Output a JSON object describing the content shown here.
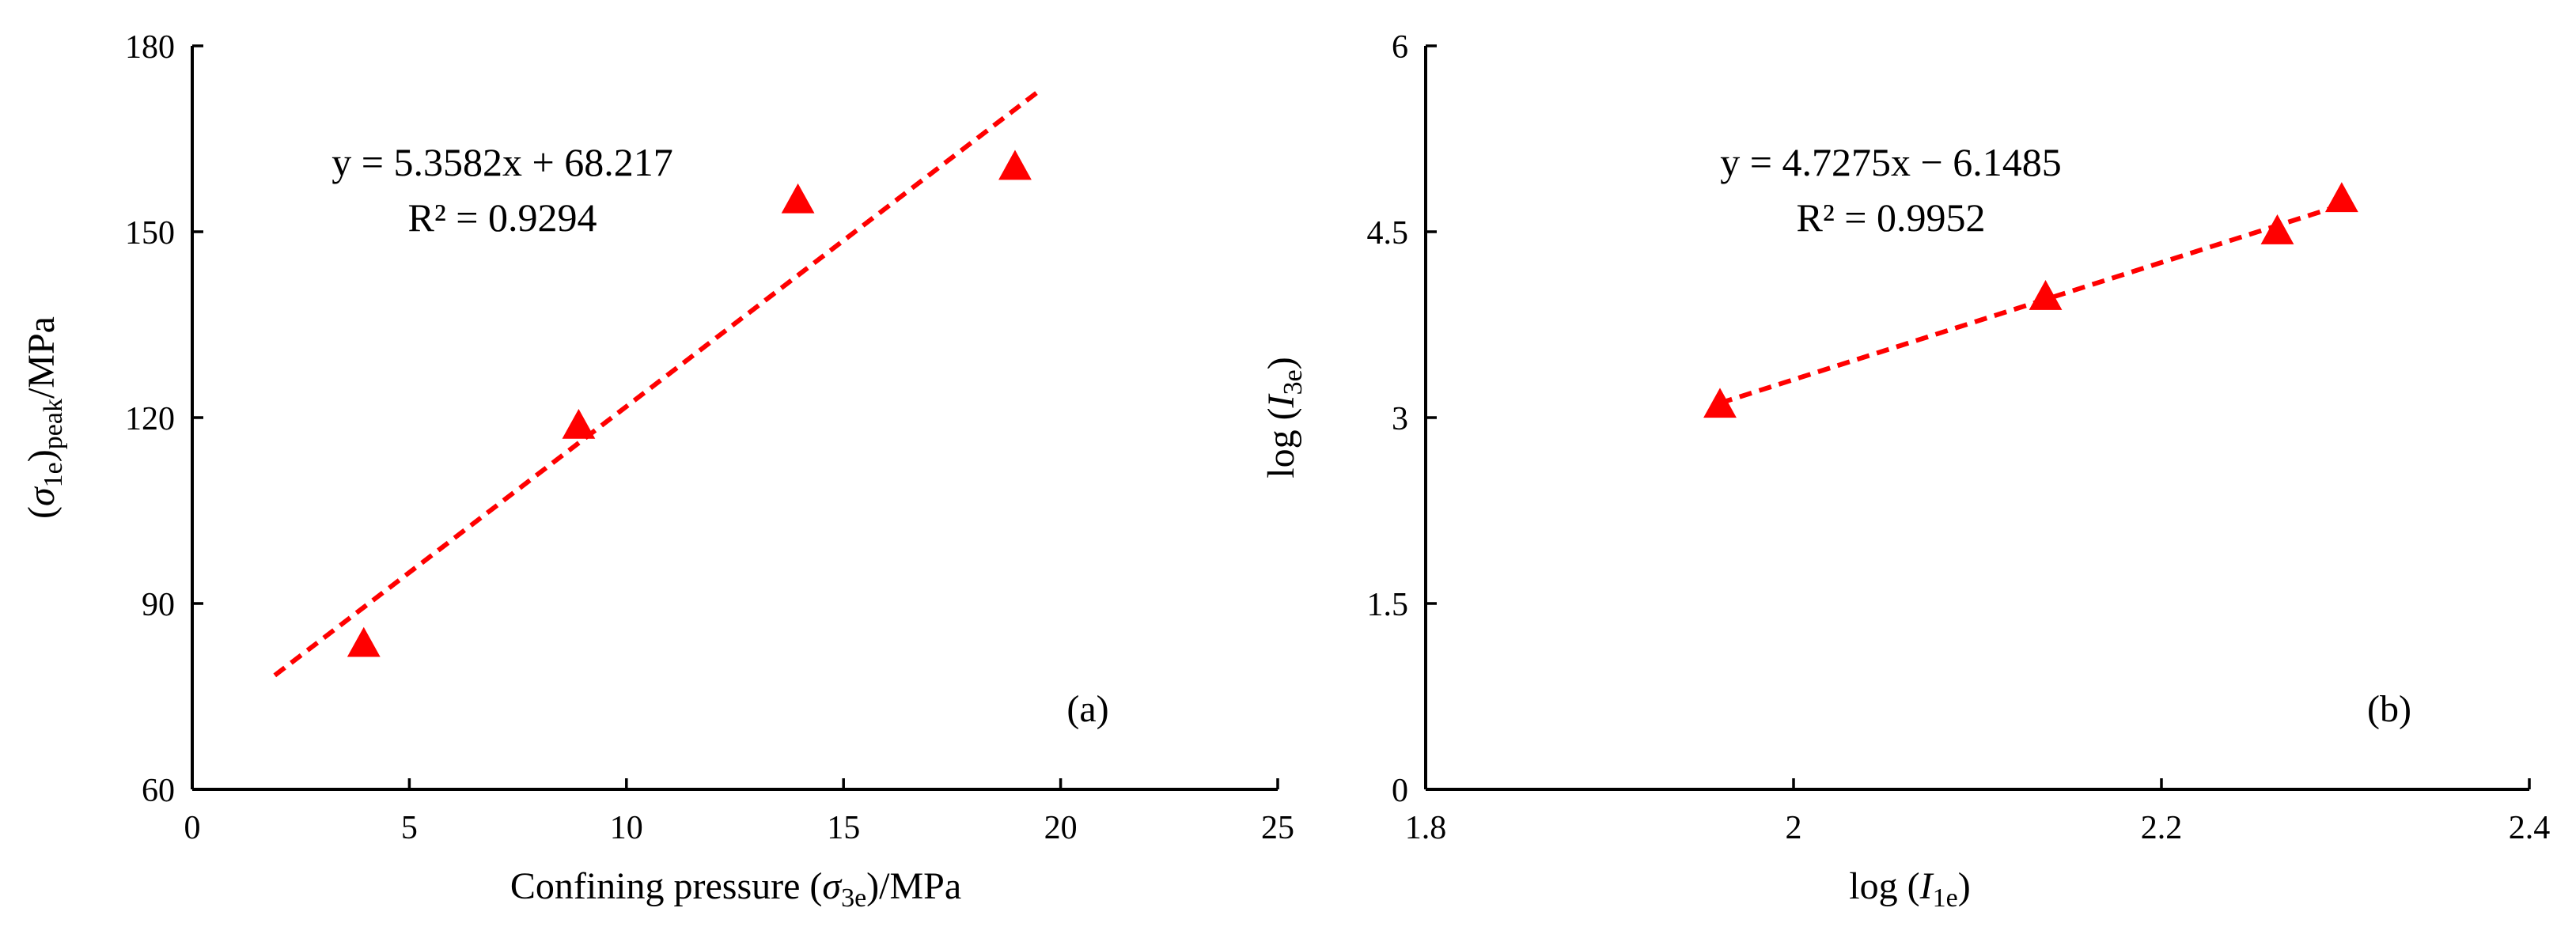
{
  "colors": {
    "marker": "#ff0000",
    "trendline": "#ff0000",
    "axis": "#000000"
  },
  "chart_data": [
    {
      "type": "scatter",
      "panel_label": "(a)",
      "xlabel_parts": [
        "Confining pressure (",
        "σ",
        "3e",
        ")/MPa"
      ],
      "ylabel_parts": [
        "(",
        "σ",
        "1e",
        ")",
        "peak",
        "/MPa"
      ],
      "xlim": [
        0,
        25
      ],
      "ylim": [
        60,
        180
      ],
      "xticks": [
        0,
        5,
        10,
        15,
        20,
        25
      ],
      "yticks": [
        60,
        90,
        120,
        150,
        180
      ],
      "x_tick_labels": [
        "0",
        "5",
        "10",
        "15",
        "20",
        "25"
      ],
      "y_tick_labels": [
        "60",
        "90",
        "120",
        "150",
        "180"
      ],
      "marker": "triangle",
      "series": [
        {
          "x": [
            3.95,
            8.9,
            13.95,
            18.95
          ],
          "y": [
            83.4,
            118.6,
            155.0,
            160.4
          ]
        }
      ],
      "trendline": {
        "slope": 5.3582,
        "intercept": 68.217,
        "x_range": [
          1.9,
          19.5
        ]
      },
      "annotations": {
        "equation": "y = 5.3582x + 68.217",
        "r2": "R² = 0.9294"
      },
      "grid": false
    },
    {
      "type": "scatter",
      "panel_label": "(b)",
      "xlabel_parts": [
        "log (",
        "I",
        "1e",
        ")"
      ],
      "ylabel_parts": [
        "log (",
        "I",
        "3e",
        ")"
      ],
      "xlim": [
        1.8,
        2.4
      ],
      "ylim": [
        0,
        6
      ],
      "xticks": [
        1.8,
        2.0,
        2.2,
        2.4
      ],
      "yticks": [
        0,
        1.5,
        3,
        4.5,
        6
      ],
      "x_tick_labels": [
        "1.8",
        "2",
        "2.2",
        "2.4"
      ],
      "y_tick_labels": [
        "0",
        "1.5",
        "3",
        "4.5",
        "6"
      ],
      "marker": "triangle",
      "series": [
        {
          "x": [
            1.96,
            2.137,
            2.263,
            2.298
          ],
          "y": [
            3.1,
            3.97,
            4.5,
            4.76
          ]
        }
      ],
      "trendline": {
        "slope": 4.7275,
        "intercept": -6.1485,
        "x_range": [
          1.96,
          2.3
        ]
      },
      "annotations": {
        "equation": "y = 4.7275x − 6.1485",
        "r2": "R² = 0.9952"
      },
      "grid": false
    }
  ]
}
